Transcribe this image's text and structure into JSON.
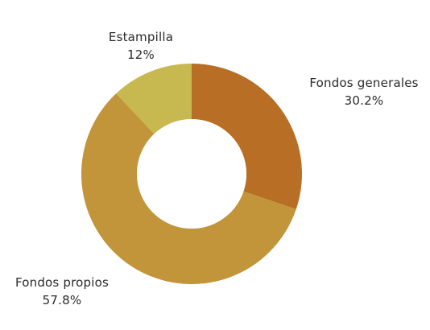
{
  "chart_data": {
    "type": "pie",
    "donut": true,
    "title": "",
    "slices": [
      {
        "label": "Fondos generales",
        "value": 30.2,
        "display": "30.2%",
        "color": "#B86E25"
      },
      {
        "label": "Fondos propios",
        "value": 57.8,
        "display": "57.8%",
        "color": "#C2953B"
      },
      {
        "label": "Estampilla",
        "value": 12,
        "display": "12%",
        "color": "#C8B850"
      }
    ],
    "start_angle": "12 o'clock",
    "direction": "clockwise",
    "legend": "none"
  }
}
